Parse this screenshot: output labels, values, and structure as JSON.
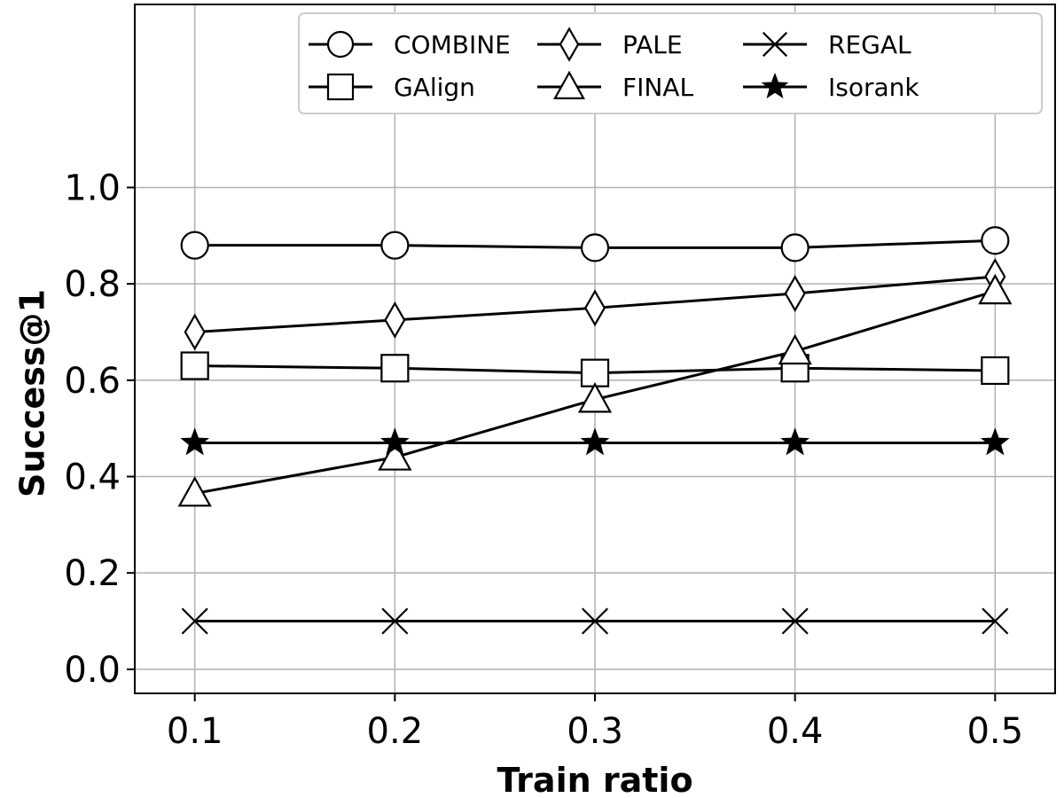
{
  "chart_data": {
    "type": "line",
    "title": "",
    "xlabel": "Train ratio",
    "ylabel": "Success@1",
    "x": [
      0.1,
      0.2,
      0.3,
      0.4,
      0.5
    ],
    "x_tick_labels": [
      "0.1",
      "0.2",
      "0.3",
      "0.4",
      "0.5"
    ],
    "y_ticks": [
      0.0,
      0.2,
      0.4,
      0.6,
      0.8,
      1.0
    ],
    "y_tick_labels": [
      "0.0",
      "0.2",
      "0.4",
      "0.6",
      "0.8",
      "1.0"
    ],
    "xlim": [
      0.07,
      0.53
    ],
    "ylim": [
      -0.05,
      1.38
    ],
    "grid": true,
    "legend_position": "top-right",
    "series": [
      {
        "name": "COMBINE",
        "marker": "circle",
        "values": [
          0.88,
          0.88,
          0.875,
          0.875,
          0.89
        ]
      },
      {
        "name": "GAlign",
        "marker": "square",
        "values": [
          0.63,
          0.625,
          0.615,
          0.625,
          0.62
        ]
      },
      {
        "name": "PALE",
        "marker": "diamond",
        "values": [
          0.7,
          0.725,
          0.75,
          0.78,
          0.815
        ]
      },
      {
        "name": "FINAL",
        "marker": "triangle",
        "values": [
          0.365,
          0.44,
          0.56,
          0.66,
          0.785
        ]
      },
      {
        "name": "REGAL",
        "marker": "x",
        "values": [
          0.1,
          0.1,
          0.1,
          0.1,
          0.1
        ]
      },
      {
        "name": "Isorank",
        "marker": "star",
        "values": [
          0.47,
          0.47,
          0.47,
          0.47,
          0.47
        ]
      }
    ],
    "colors": {
      "line": "#000000",
      "grid": "#b0b0b0",
      "background": "#ffffff"
    }
  }
}
